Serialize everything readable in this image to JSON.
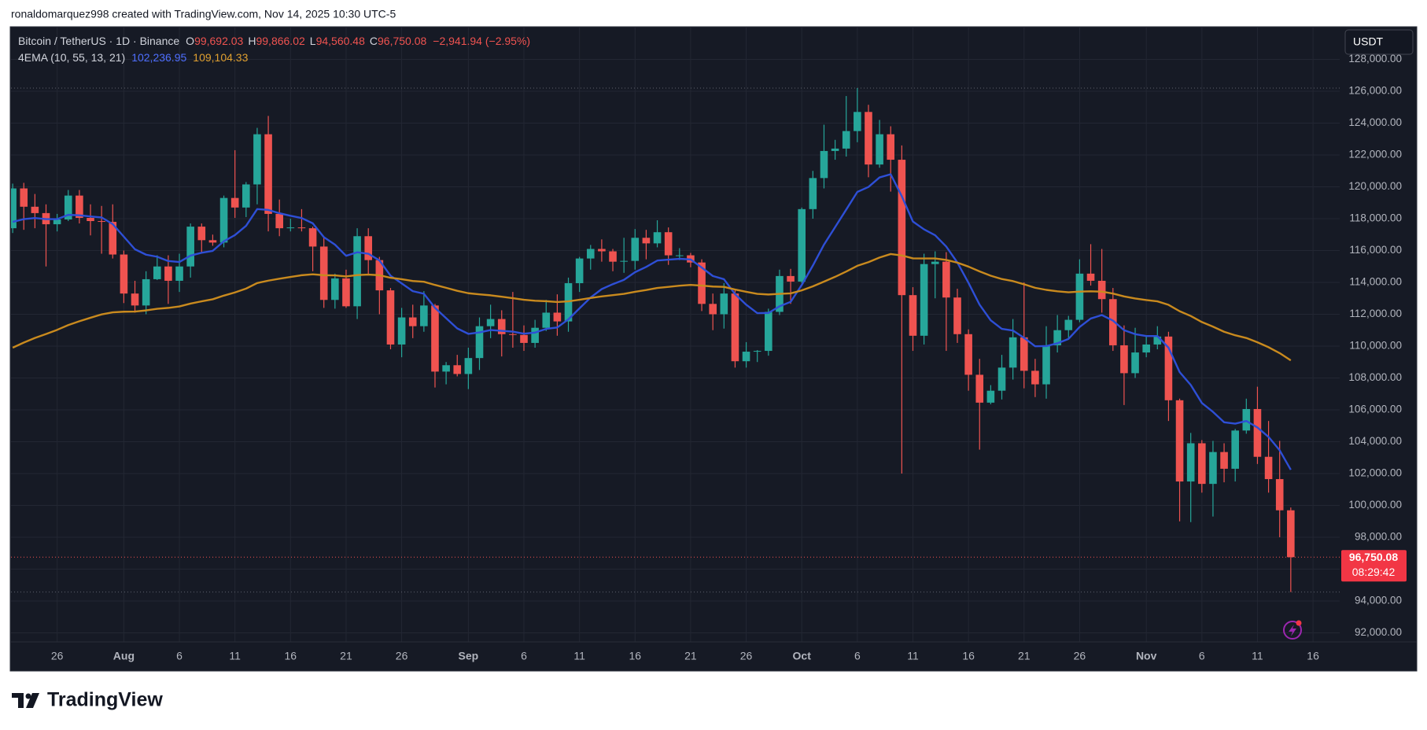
{
  "header": {
    "attribution": "ronaldomarquez998 created with TradingView.com, Nov 14, 2025 10:30 UTC-5",
    "brand": "TradingView"
  },
  "chart_data": {
    "type": "candlestick",
    "symbol": "Bitcoin / TetherUS · 1D · Binance",
    "ohlc_legend": [
      {
        "key": "O",
        "value": "99,692.03"
      },
      {
        "key": "H",
        "value": "99,866.02"
      },
      {
        "key": "L",
        "value": "94,560.48"
      },
      {
        "key": "C",
        "value": "96,750.08"
      }
    ],
    "change": "−2,941.94 (−2.95%)",
    "indicator": "4EMA (10, 55, 13, 21)",
    "currency": "USDT",
    "last_price_label": "96,750.08",
    "countdown": "08:29:42",
    "open": [
      117400,
      119900,
      118750,
      118350,
      117650,
      117950,
      119450,
      118050,
      117850,
      117800,
      115750,
      113300,
      112550,
      114200,
      115000,
      114100,
      115000,
      117500,
      116650,
      116500,
      119300,
      118700,
      120150,
      123300,
      118300,
      117400,
      117450,
      117400,
      116250,
      112900,
      114250,
      112500,
      116900,
      115400,
      113500,
      110100,
      111800,
      111250,
      112550,
      108400,
      108800,
      108250,
      109250,
      111250,
      111700,
      110750,
      110700,
      110200,
      111150,
      112100,
      111550,
      113950,
      115500,
      116100,
      115950,
      115300,
      115350,
      116800,
      116450,
      117150,
      115700,
      115700,
      115250,
      112650,
      112000,
      113300,
      109050,
      109650,
      109700,
      112150,
      114400,
      114050,
      118600,
      120550,
      122250,
      122400,
      123500,
      124700,
      121400,
      123300,
      121700,
      113200,
      110650,
      115150,
      115300,
      113050,
      110750,
      108200,
      106450,
      107200,
      108650,
      110550,
      108450,
      107600,
      110050,
      111000,
      111650,
      114550,
      114100,
      112950,
      110050,
      108300,
      109600,
      110100,
      110600,
      106600,
      101500,
      103900,
      101350,
      103350,
      102300,
      104700,
      106050,
      103050,
      101650,
      99692.03
    ],
    "high": [
      120200,
      120250,
      119550,
      118900,
      118300,
      119800,
      119800,
      118900,
      118800,
      118900,
      116000,
      114100,
      114700,
      115700,
      115700,
      115800,
      117700,
      117700,
      117000,
      119450,
      122300,
      120300,
      123700,
      124450,
      119200,
      118000,
      118600,
      117500,
      116800,
      114550,
      114800,
      117400,
      117400,
      115600,
      113650,
      112400,
      112600,
      113450,
      112650,
      109000,
      109450,
      109900,
      111800,
      112600,
      112250,
      113400,
      111300,
      111650,
      112900,
      113250,
      114300,
      115600,
      116350,
      116700,
      116100,
      116800,
      117350,
      117300,
      117900,
      117450,
      116150,
      115850,
      115450,
      113300,
      113950,
      113600,
      110250,
      109750,
      112350,
      114800,
      114850,
      118700,
      121000,
      123900,
      122950,
      125700,
      126200,
      125150,
      124200,
      123800,
      122600,
      113700,
      115800,
      115950,
      115900,
      113600,
      111050,
      109200,
      107550,
      109450,
      111700,
      114000,
      109200,
      111250,
      111950,
      111900,
      115450,
      116400,
      116100,
      113650,
      111300,
      111150,
      110650,
      111250,
      110900,
      106700,
      104550,
      104100,
      104050,
      103900,
      104800,
      106700,
      107450,
      105300,
      104050,
      99866.02
    ],
    "low": [
      117100,
      117300,
      117400,
      115000,
      117200,
      117850,
      117700,
      116950,
      115800,
      115500,
      112700,
      112100,
      112000,
      114150,
      112650,
      113400,
      114300,
      115850,
      116300,
      116200,
      118050,
      118100,
      118900,
      117200,
      116900,
      117200,
      117200,
      114700,
      112400,
      112350,
      112400,
      111700,
      114500,
      112000,
      109800,
      109300,
      110500,
      110900,
      107400,
      107600,
      108100,
      107300,
      108500,
      110500,
      109350,
      109900,
      109700,
      109900,
      110950,
      110650,
      110900,
      113400,
      114800,
      115300,
      114700,
      114600,
      114800,
      115450,
      116200,
      115100,
      115400,
      114950,
      112200,
      111000,
      111100,
      108650,
      108650,
      109000,
      109400,
      111950,
      112650,
      113950,
      118000,
      119900,
      121700,
      121900,
      122800,
      120600,
      121200,
      119700,
      102000,
      109700,
      110100,
      113000,
      109700,
      110200,
      107200,
      103500,
      106350,
      106650,
      107900,
      107350,
      106800,
      106700,
      109600,
      110400,
      111500,
      113800,
      112100,
      109700,
      106300,
      108000,
      109300,
      109800,
      105300,
      99000,
      98950,
      100800,
      99300,
      101450,
      101500,
      104500,
      102600,
      100800,
      98000,
      94560.48
    ],
    "close": [
      119900,
      118750,
      118350,
      117650,
      117950,
      119450,
      118050,
      117850,
      117800,
      115750,
      113300,
      112550,
      114200,
      115000,
      114100,
      115000,
      117500,
      116650,
      116500,
      119300,
      118700,
      120150,
      123300,
      118300,
      117400,
      117450,
      117400,
      116250,
      112900,
      114250,
      112500,
      116900,
      115400,
      113500,
      110100,
      111800,
      111250,
      112550,
      108400,
      108800,
      108250,
      109250,
      111250,
      111700,
      110750,
      110700,
      110200,
      111150,
      112100,
      111550,
      113950,
      115500,
      116100,
      115950,
      115300,
      115350,
      116800,
      116450,
      117150,
      115700,
      115700,
      115250,
      112650,
      112000,
      113300,
      109050,
      109650,
      109700,
      112150,
      114400,
      114050,
      118600,
      120550,
      122250,
      122400,
      123500,
      124700,
      121400,
      123300,
      121700,
      113200,
      110650,
      115150,
      115300,
      113050,
      110750,
      108200,
      106450,
      107200,
      108650,
      110550,
      108450,
      107600,
      110050,
      111000,
      111650,
      114550,
      114100,
      112950,
      110050,
      108300,
      109600,
      110100,
      110600,
      106600,
      101500,
      103900,
      101350,
      103350,
      102300,
      104700,
      106050,
      103050,
      101650,
      99692.03,
      96750.08
    ],
    "up_color": "#26a69a",
    "down_color": "#ef5350",
    "lines": [
      {
        "color": "#2e4fd6",
        "value_label": "102,236.95",
        "values": [
          117800,
          117970,
          118040,
          117970,
          117970,
          118240,
          118210,
          118140,
          118080,
          117660,
          116870,
          116080,
          115740,
          115610,
          115340,
          115280,
          115680,
          115860,
          115980,
          116580,
          116970,
          117550,
          118600,
          118550,
          118340,
          118180,
          118040,
          117710,
          116840,
          116370,
          115670,
          115890,
          115800,
          115380,
          114420,
          113940,
          113450,
          113290,
          112400,
          111750,
          111110,
          110770,
          110860,
          111010,
          110960,
          110910,
          110780,
          110850,
          111080,
          111170,
          111680,
          112370,
          113050,
          113580,
          113890,
          114160,
          114640,
          114970,
          115370,
          115430,
          115480,
          115440,
          114930,
          114400,
          114200,
          113260,
          112600,
          112070,
          112080,
          112500,
          112780,
          113840,
          115060,
          116370,
          117470,
          118570,
          119680,
          119990,
          120590,
          120790,
          119410,
          117820,
          117330,
          116960,
          116250,
          115250,
          113970,
          112600,
          111620,
          111080,
          110980,
          110520,
          109990,
          110000,
          110180,
          110450,
          111200,
          111730,
          111950,
          111600,
          111000,
          110750,
          110630,
          110630,
          109900,
          108370,
          107560,
          106430,
          105870,
          105220,
          105130,
          105300,
          104890,
          104300,
          103460,
          102236.95
        ]
      },
      {
        "color": "#c98a1e",
        "value_label": "109,104.33",
        "values": [
          109900,
          110220,
          110510,
          110760,
          111020,
          111320,
          111560,
          111780,
          111990,
          112120,
          112160,
          112170,
          112240,
          112340,
          112400,
          112490,
          112670,
          112810,
          112940,
          113170,
          113370,
          113610,
          113960,
          114110,
          114230,
          114340,
          114450,
          114510,
          114450,
          114440,
          114370,
          114460,
          114490,
          114450,
          114290,
          114200,
          114090,
          114040,
          113840,
          113660,
          113470,
          113320,
          113250,
          113190,
          113100,
          113010,
          112910,
          112850,
          112820,
          112770,
          112810,
          112910,
          113020,
          113120,
          113200,
          113280,
          113410,
          113520,
          113650,
          113720,
          113790,
          113840,
          113800,
          113740,
          113720,
          113550,
          113410,
          113280,
          113240,
          113280,
          113310,
          113500,
          113750,
          114050,
          114350,
          114680,
          115040,
          115270,
          115560,
          115780,
          115690,
          115510,
          115500,
          115500,
          115410,
          115240,
          114990,
          114690,
          114420,
          114210,
          114080,
          113880,
          113660,
          113530,
          113440,
          113380,
          113420,
          113440,
          113420,
          113300,
          113120,
          112990,
          112890,
          112810,
          112590,
          112190,
          111890,
          111510,
          111220,
          110900,
          110680,
          110510,
          110240,
          109930,
          109560,
          109104.33
        ]
      }
    ],
    "xlim": [
      -0.15,
      119.4
    ],
    "xticks": [
      {
        "value": 4,
        "label": "26"
      },
      {
        "value": 10,
        "label": "Aug"
      },
      {
        "value": 15,
        "label": "6"
      },
      {
        "value": 20,
        "label": "11"
      },
      {
        "value": 25,
        "label": "16"
      },
      {
        "value": 30,
        "label": "21"
      },
      {
        "value": 35,
        "label": "26"
      },
      {
        "value": 41,
        "label": "Sep"
      },
      {
        "value": 46,
        "label": "6"
      },
      {
        "value": 51,
        "label": "11"
      },
      {
        "value": 56,
        "label": "16"
      },
      {
        "value": 61,
        "label": "21"
      },
      {
        "value": 66,
        "label": "26"
      },
      {
        "value": 71,
        "label": "Oct"
      },
      {
        "value": 76,
        "label": "6"
      },
      {
        "value": 81,
        "label": "11"
      },
      {
        "value": 86,
        "label": "16"
      },
      {
        "value": 91,
        "label": "21"
      },
      {
        "value": 96,
        "label": "26"
      },
      {
        "value": 102,
        "label": "Nov"
      },
      {
        "value": 107,
        "label": "6"
      },
      {
        "value": 112,
        "label": "11"
      },
      {
        "value": 117,
        "label": "16"
      }
    ],
    "ylim": [
      91430,
      130000
    ],
    "yticks": [
      {
        "value": 92000,
        "label": "92,000.00"
      },
      {
        "value": 94000,
        "label": "94,000.00"
      },
      {
        "value": 96000,
        "label": "96,000.00"
      },
      {
        "value": 98000,
        "label": "98,000.00"
      },
      {
        "value": 100000,
        "label": "100,000.00"
      },
      {
        "value": 102000,
        "label": "102,000.00"
      },
      {
        "value": 104000,
        "label": "104,000.00"
      },
      {
        "value": 106000,
        "label": "106,000.00"
      },
      {
        "value": 108000,
        "label": "108,000.00"
      },
      {
        "value": 110000,
        "label": "110,000.00"
      },
      {
        "value": 112000,
        "label": "112,000.00"
      },
      {
        "value": 114000,
        "label": "114,000.00"
      },
      {
        "value": 116000,
        "label": "116,000.00"
      },
      {
        "value": 118000,
        "label": "118,000.00"
      },
      {
        "value": 120000,
        "label": "120,000.00"
      },
      {
        "value": 122000,
        "label": "122,000.00"
      },
      {
        "value": 124000,
        "label": "124,000.00"
      },
      {
        "value": 126000,
        "label": "126,000.00"
      },
      {
        "value": 128000,
        "label": "128,000.00"
      }
    ],
    "grid": true
  }
}
